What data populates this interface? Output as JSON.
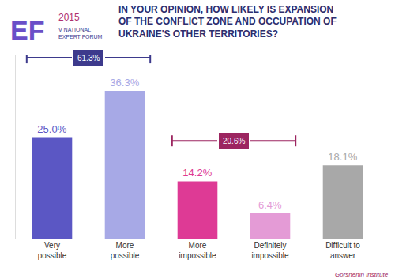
{
  "chart_data": {
    "type": "bar",
    "title": "IN YOUR OPINION, HOW LIKELY IS EXPANSION\nOF THE CONFLICT ZONE AND OCCUPATION OF\nUKRAINE'S OTHER TERRITORIES?",
    "categories": [
      "Very\npossible",
      "More\npossible",
      "More\nimpossible",
      "Definitely\nimpossible",
      "Difficult to\nanswer"
    ],
    "values": [
      25.0,
      36.3,
      14.2,
      6.4,
      18.1
    ],
    "value_labels": [
      "25.0%",
      "36.3%",
      "14.2%",
      "6.4%",
      "18.1%"
    ],
    "colors": [
      "#5b57c4",
      "#a7a9e6",
      "#de3a95",
      "#e49bd6",
      "#a8a8a8"
    ],
    "data_labels": true,
    "ylim": [
      0,
      45
    ],
    "yticks": [],
    "tick_labels": "x",
    "grid": false,
    "groups": [
      {
        "span": [
          "Very\npossible",
          "More\npossible"
        ],
        "label": "61.3%",
        "color": "#3d3a8c"
      },
      {
        "span": [
          "More\nimpossible",
          "Definitely\nimpossible"
        ],
        "label": "20.6%",
        "color": "#9c2560"
      }
    ]
  },
  "logo": {
    "mark": "EF",
    "year": "2015",
    "event": "V NATIONAL\nEXPERT FORUM",
    "source": "Gorshenin Institute"
  }
}
